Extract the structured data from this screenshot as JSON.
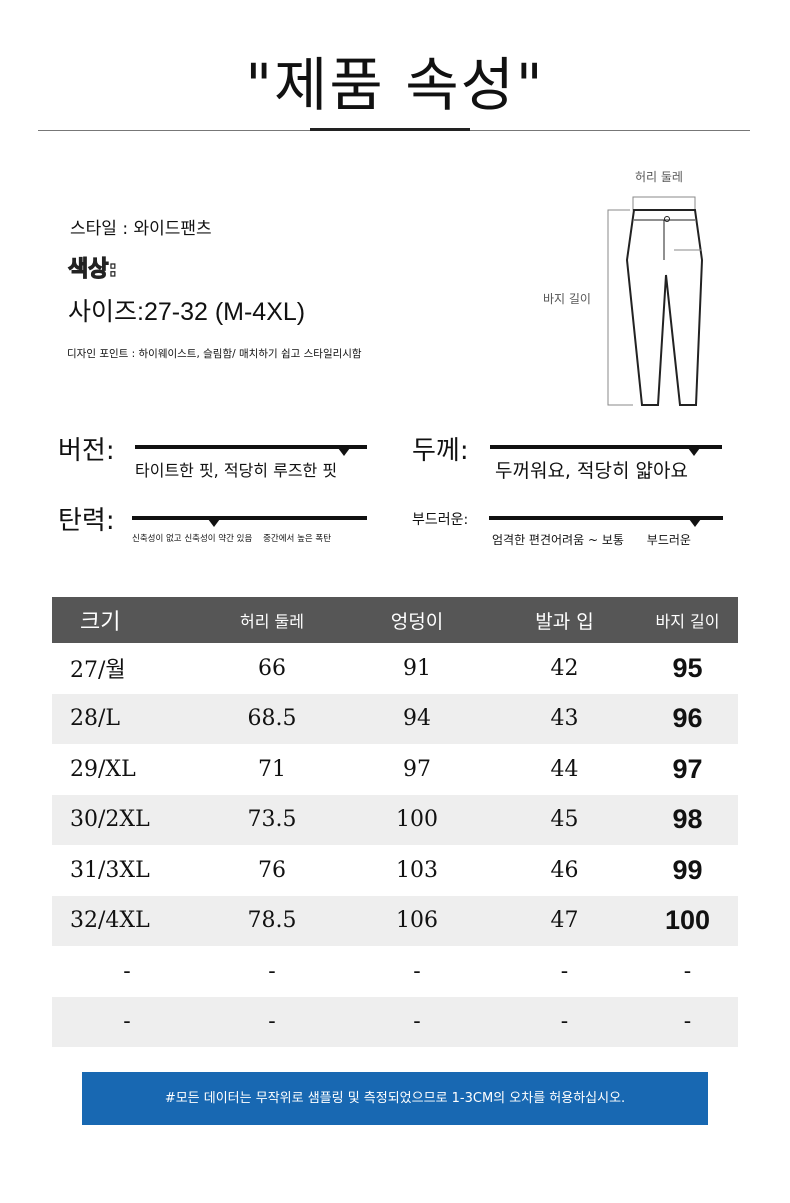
{
  "title": "\"제품 속성\"",
  "attributes": {
    "style": "스타일 : 와이드팬츠",
    "color": "색상:",
    "size": "사이즈:27-32 (M-4XL)",
    "design": "디자인 포인트 : 하이웨이스트, 슬림함/ 매치하기 쉽고 스타일리시함"
  },
  "diagram": {
    "waist": "허리 둘레",
    "length": "바지 길이"
  },
  "sliders": [
    {
      "label": "버전:",
      "desc": "타이트한 핏, 적당히 루즈한 핏",
      "level": 0.9
    },
    {
      "label": "두께:",
      "desc": "두꺼워요, 적당히 얇아요",
      "level": 0.88
    },
    {
      "label": "탄력:",
      "desc": "신축성이 없고 신축성이 약간 있음    중간에서 높은 폭탄",
      "level": 0.35
    },
    {
      "label": "부드러운:",
      "desc": "엄격한 편견어려움 ~ 보통      부드러운",
      "level": 0.88
    }
  ],
  "table": {
    "headers": [
      "크기",
      "허리 둘레",
      "엉덩이",
      "발과 입",
      "바지 길이"
    ],
    "rows": [
      [
        "27/월",
        "66",
        "91",
        "42",
        "95"
      ],
      [
        "28/L",
        "68.5",
        "94",
        "43",
        "96"
      ],
      [
        "29/XL",
        "71",
        "97",
        "44",
        "97"
      ],
      [
        "30/2XL",
        "73.5",
        "100",
        "45",
        "98"
      ],
      [
        "31/3XL",
        "76",
        "103",
        "46",
        "99"
      ],
      [
        "32/4XL",
        "78.5",
        "106",
        "47",
        "100"
      ],
      [
        "-",
        "-",
        "-",
        "-",
        "-"
      ],
      [
        "-",
        "-",
        "-",
        "-",
        "-"
      ]
    ]
  },
  "footer": "#모든 데이터는 무작위로 샘플링 및 측정되었으므로 1-3CM의 오차를 허용하십시오.",
  "colors": {
    "header_bg": "#565656",
    "footer_bg": "#1868b2",
    "row_alt": "#eeeeee"
  }
}
